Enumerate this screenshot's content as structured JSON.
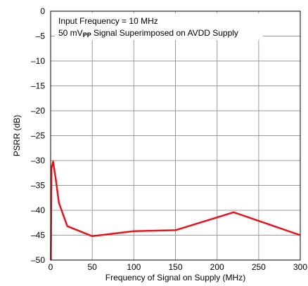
{
  "chart_data": {
    "type": "line",
    "xlabel": "Frequency of Signal on Supply (MHz)",
    "ylabel": "PSRR  (dB)",
    "xlim": [
      0,
      300
    ],
    "ylim": [
      -50,
      0
    ],
    "xticks": [
      0,
      50,
      100,
      150,
      200,
      250,
      300
    ],
    "yticks": [
      0,
      -5,
      -10,
      -15,
      -20,
      -25,
      -30,
      -35,
      -40,
      -45,
      -50
    ],
    "xtick_labels": [
      "0",
      "50",
      "100",
      "150",
      "200",
      "250",
      "300"
    ],
    "ytick_labels": [
      "0",
      "–5",
      "–10",
      "–15",
      "–20",
      "–25",
      "–30",
      "–35",
      "–40",
      "–45",
      "–50"
    ],
    "grid": true,
    "annotations": {
      "line1": "Input Frequency = 10 MHz",
      "line2_prefix": "50 mV",
      "line2_sub": "PP",
      "line2_suffix": " Signal Superimposed on AVDD Supply"
    },
    "series": [
      {
        "color": "#e8141b",
        "x": [
          0.3,
          1,
          3,
          6,
          10,
          20,
          50,
          100,
          150,
          220,
          300
        ],
        "y": [
          -50,
          -31.5,
          -30.2,
          -33.5,
          -38.5,
          -43.2,
          -45.2,
          -44.2,
          -44.0,
          -40.4,
          -45.0
        ]
      }
    ]
  }
}
